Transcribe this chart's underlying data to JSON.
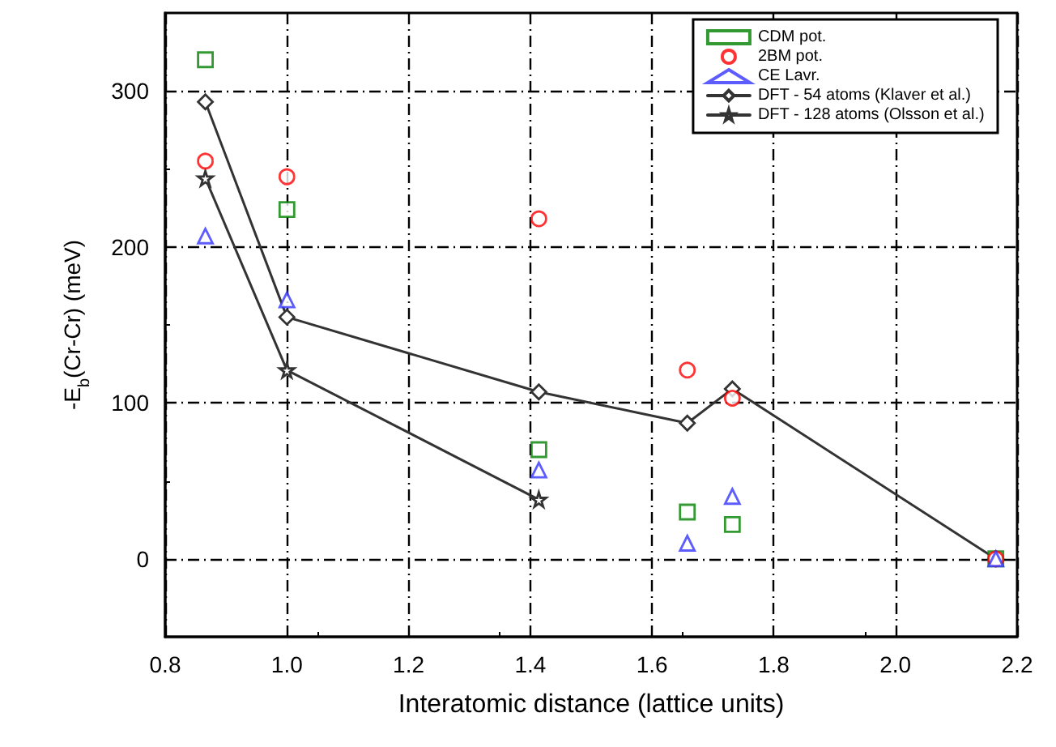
{
  "chart_data": {
    "type": "scatter",
    "xlabel": "Interatomic distance (lattice units)",
    "ylabel": "-E$_{b}$(Cr-Cr) (meV)",
    "x": [
      0.866,
      1.0,
      1.414,
      1.658,
      1.732,
      2.165
    ],
    "series": [
      {
        "name": "CDM pot.",
        "marker": "square",
        "color": "#008000",
        "values": [
          320,
          224,
          70,
          30,
          22,
          0
        ]
      },
      {
        "name": "2BM pot.",
        "marker": "circle",
        "color": "#ff0000",
        "values": [
          255,
          245,
          218,
          121,
          103,
          0
        ]
      },
      {
        "name": "CE Lavr.",
        "marker": "triangle",
        "color": "#3333ff",
        "values": [
          207,
          166,
          57,
          10,
          40,
          0
        ]
      },
      {
        "name": "DFT - 54 atoms (Klaver et al.)",
        "type": "line",
        "marker": "diamond",
        "color": "#333333",
        "values": [
          293,
          155,
          107,
          87,
          109,
          0
        ]
      },
      {
        "name": "DFT - 128 atoms (Olsson et al.)",
        "type": "line",
        "marker": "star",
        "color": "#333333",
        "x": [
          0.866,
          1.0,
          1.414
        ],
        "values": [
          244,
          121,
          38
        ]
      }
    ],
    "xlim": [
      0.8,
      2.2
    ],
    "xticks": [
      0.8,
      {
        "value": 1,
        "label": "1.0"
      },
      1.2,
      1.4,
      1.6,
      1.8,
      {
        "value": 2,
        "label": "2.0"
      },
      2.2
    ],
    "ylim": [
      -50,
      350
    ],
    "yticks": [
      0,
      100,
      200,
      300
    ],
    "grid": true,
    "legend": "top right"
  }
}
